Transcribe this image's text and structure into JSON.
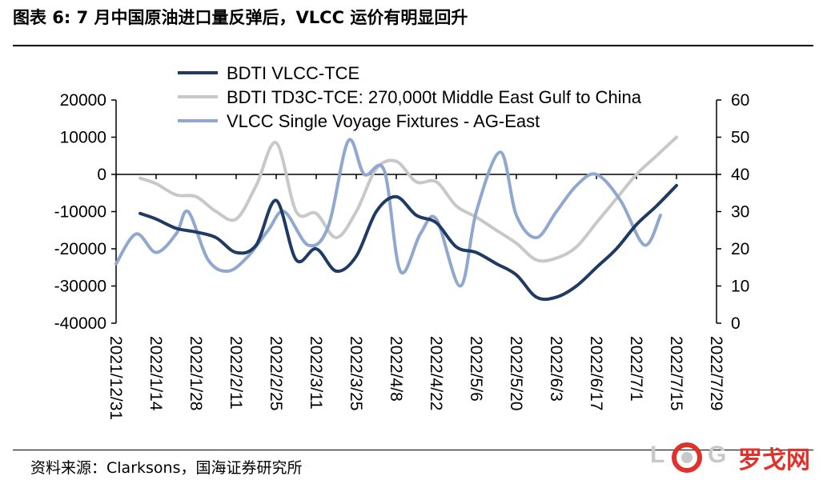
{
  "title": "图表 6:  7 月中国原油进口量反弹后，VLCC 运价有明显回升",
  "source": "资料来源：Clarksons，国海证券研究所",
  "watermark": {
    "letters_1": "L",
    "letters_2": "G",
    "cn": "罗戈网"
  },
  "colors": {
    "series1": "#1f3b64",
    "series2": "#c8c8c8",
    "series3": "#90a8cf"
  },
  "chart_data": {
    "type": "line",
    "x_ticks": [
      "2021/12/31",
      "2022/1/14",
      "2022/1/28",
      "2022/2/11",
      "2022/2/25",
      "2022/3/11",
      "2022/3/25",
      "2022/4/8",
      "2022/4/22",
      "2022/5/6",
      "2022/5/20",
      "2022/6/3",
      "2022/6/17",
      "2022/7/1",
      "2022/7/15",
      "2022/7/29"
    ],
    "y_left": {
      "min": -40000,
      "max": 20000,
      "ticks": [
        -40000,
        -30000,
        -20000,
        -10000,
        0,
        10000,
        20000
      ]
    },
    "y_right": {
      "min": 0,
      "max": 60,
      "ticks": [
        0,
        10,
        20,
        30,
        40,
        50,
        60
      ]
    },
    "legend_position": "top",
    "series": [
      {
        "name": "BDTI VLCC-TCE",
        "axis": "left",
        "color": "#1f3b64",
        "points": [
          [
            0.6,
            -10500
          ],
          [
            1.0,
            -12000
          ],
          [
            1.5,
            -14500
          ],
          [
            2.0,
            -15500
          ],
          [
            2.5,
            -17000
          ],
          [
            3.0,
            -21000
          ],
          [
            3.5,
            -19000
          ],
          [
            4.0,
            -7000
          ],
          [
            4.5,
            -23000
          ],
          [
            5.0,
            -20000
          ],
          [
            5.5,
            -26000
          ],
          [
            6.0,
            -22000
          ],
          [
            6.5,
            -10000
          ],
          [
            7.0,
            -6000
          ],
          [
            7.5,
            -11000
          ],
          [
            8.0,
            -13000
          ],
          [
            8.5,
            -19500
          ],
          [
            9.0,
            -21000
          ],
          [
            9.5,
            -24000
          ],
          [
            10.0,
            -27000
          ],
          [
            10.5,
            -33000
          ],
          [
            11.0,
            -33000
          ],
          [
            11.5,
            -30000
          ],
          [
            12.0,
            -25000
          ],
          [
            12.5,
            -20000
          ],
          [
            13.0,
            -13500
          ],
          [
            13.5,
            -8500
          ],
          [
            14.0,
            -3000
          ]
        ]
      },
      {
        "name": "BDTI TD3C-TCE: 270,000t Middle East Gulf to China",
        "axis": "left",
        "color": "#c8c8c8",
        "points": [
          [
            0.6,
            -1000
          ],
          [
            1.0,
            -2500
          ],
          [
            1.5,
            -5500
          ],
          [
            2.0,
            -6000
          ],
          [
            2.5,
            -10000
          ],
          [
            3.0,
            -12000
          ],
          [
            3.5,
            -3000
          ],
          [
            4.0,
            8500
          ],
          [
            4.5,
            -10000
          ],
          [
            5.0,
            -10500
          ],
          [
            5.5,
            -17000
          ],
          [
            6.0,
            -10000
          ],
          [
            6.5,
            1500
          ],
          [
            7.0,
            3500
          ],
          [
            7.5,
            -2000
          ],
          [
            8.0,
            -2000
          ],
          [
            8.5,
            -8500
          ],
          [
            9.0,
            -11500
          ],
          [
            9.5,
            -15000
          ],
          [
            10.0,
            -18500
          ],
          [
            10.5,
            -23000
          ],
          [
            11.0,
            -22500
          ],
          [
            11.5,
            -19500
          ],
          [
            12.0,
            -13000
          ],
          [
            12.5,
            -6500
          ],
          [
            13.0,
            0
          ],
          [
            13.5,
            5000
          ],
          [
            14.0,
            10000
          ]
        ]
      },
      {
        "name": "VLCC Single Voyage Fixtures - AG-East",
        "axis": "right",
        "color": "#90a8cf",
        "points": [
          [
            0.0,
            16
          ],
          [
            0.5,
            24
          ],
          [
            1.0,
            19
          ],
          [
            1.5,
            24
          ],
          [
            1.8,
            30
          ],
          [
            2.3,
            17
          ],
          [
            2.8,
            14
          ],
          [
            3.3,
            18
          ],
          [
            3.8,
            25
          ],
          [
            4.2,
            30
          ],
          [
            4.8,
            21
          ],
          [
            5.3,
            26
          ],
          [
            5.8,
            49
          ],
          [
            6.2,
            40
          ],
          [
            6.7,
            41
          ],
          [
            7.1,
            14
          ],
          [
            7.6,
            24
          ],
          [
            8.0,
            28
          ],
          [
            8.6,
            10
          ],
          [
            9.0,
            30
          ],
          [
            9.6,
            46
          ],
          [
            10.0,
            29
          ],
          [
            10.5,
            23
          ],
          [
            11.0,
            30
          ],
          [
            11.5,
            37
          ],
          [
            12.0,
            40
          ],
          [
            12.6,
            33
          ],
          [
            13.2,
            21
          ],
          [
            13.6,
            29
          ]
        ]
      }
    ]
  }
}
